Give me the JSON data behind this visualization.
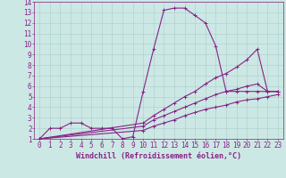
{
  "xlabel": "Windchill (Refroidissement éolien,°C)",
  "xlim": [
    -0.5,
    23.5
  ],
  "ylim": [
    1,
    14
  ],
  "xticks": [
    0,
    1,
    2,
    3,
    4,
    5,
    6,
    7,
    8,
    9,
    10,
    11,
    12,
    13,
    14,
    15,
    16,
    17,
    18,
    19,
    20,
    21,
    22,
    23
  ],
  "yticks": [
    1,
    2,
    3,
    4,
    5,
    6,
    7,
    8,
    9,
    10,
    11,
    12,
    13,
    14
  ],
  "bg_color": "#cce8e4",
  "grid_color": "#aacccc",
  "line_color": "#882288",
  "line1_x": [
    0,
    1,
    2,
    3,
    4,
    5,
    6,
    7,
    8,
    9,
    10,
    11,
    12,
    13,
    14,
    15,
    16,
    17,
    18,
    19,
    20,
    21,
    22,
    23
  ],
  "line1_y": [
    1,
    2,
    2,
    2.5,
    2.5,
    2,
    2,
    2,
    1,
    1.2,
    5.5,
    9.5,
    13.2,
    13.4,
    13.4,
    12.7,
    12,
    9.8,
    5.5,
    5.5,
    5.5,
    5.5,
    5.5,
    5.5
  ],
  "line2_x": [
    0,
    10,
    11,
    12,
    13,
    14,
    15,
    16,
    17,
    18,
    19,
    20,
    21,
    22,
    23
  ],
  "line2_y": [
    1,
    2.5,
    3.2,
    3.8,
    4.4,
    5.0,
    5.5,
    6.2,
    6.8,
    7.2,
    7.8,
    8.5,
    9.5,
    5.5,
    5.5
  ],
  "line3_x": [
    0,
    10,
    11,
    12,
    13,
    14,
    15,
    16,
    17,
    18,
    19,
    20,
    21,
    22,
    23
  ],
  "line3_y": [
    1,
    2.2,
    2.8,
    3.2,
    3.6,
    4.0,
    4.4,
    4.8,
    5.2,
    5.5,
    5.7,
    6.0,
    6.2,
    5.5,
    5.5
  ],
  "line4_x": [
    0,
    10,
    11,
    12,
    13,
    14,
    15,
    16,
    17,
    18,
    19,
    20,
    21,
    22,
    23
  ],
  "line4_y": [
    1,
    1.8,
    2.2,
    2.5,
    2.8,
    3.2,
    3.5,
    3.8,
    4.0,
    4.2,
    4.5,
    4.7,
    4.8,
    5.0,
    5.2
  ],
  "marker": "+",
  "markersize": 3,
  "linewidth": 0.8,
  "fontsize_label": 6,
  "fontsize_tick": 5.5
}
